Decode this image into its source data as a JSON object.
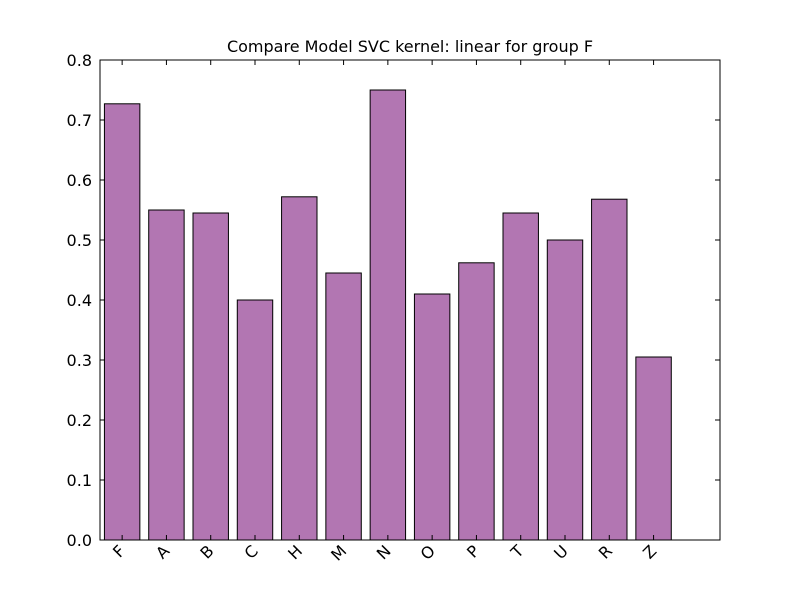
{
  "chart_data": {
    "type": "bar",
    "title": "Compare Model SVC kernel: linear for group F",
    "xlabel": "",
    "ylabel": "",
    "categories": [
      "F",
      "A",
      "B",
      "C",
      "H",
      "M",
      "N",
      "O",
      "P",
      "T",
      "U",
      "R",
      "Z"
    ],
    "values": [
      0.727,
      0.55,
      0.545,
      0.4,
      0.572,
      0.445,
      0.75,
      0.41,
      0.462,
      0.545,
      0.5,
      0.568,
      0.305
    ],
    "ylim": [
      0,
      0.8
    ],
    "xlim": [
      0,
      14
    ],
    "yticks": [
      0.0,
      0.1,
      0.2,
      0.3,
      0.4,
      0.5,
      0.6,
      0.7,
      0.8
    ],
    "ytick_labels": [
      "0.0",
      "0.1",
      "0.2",
      "0.3",
      "0.4",
      "0.5",
      "0.6",
      "0.7",
      "0.8"
    ],
    "grid": false,
    "legend": "none",
    "bar_color": "#b276b2",
    "edge_color": "#000000"
  }
}
